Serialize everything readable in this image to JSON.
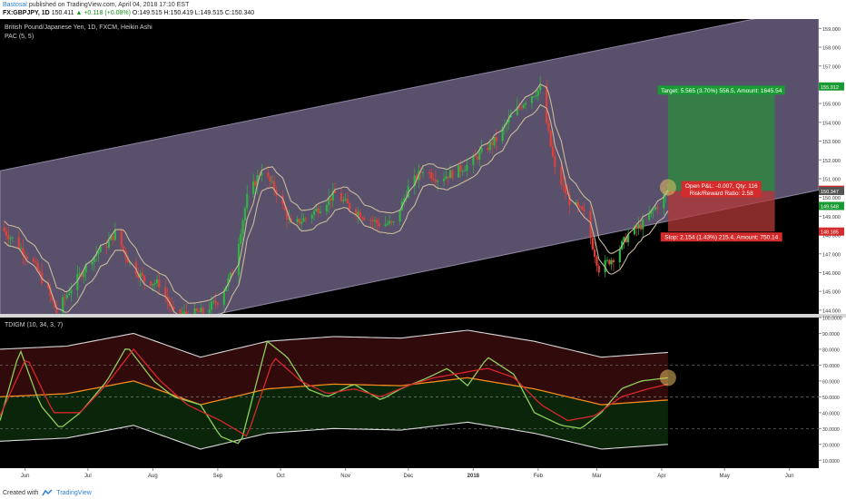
{
  "header": {
    "author": "Bastosal",
    "published_text": "published on TradingView.com, April 04, 2018 17:10 EST",
    "symbol": "FX:GBPJPY, 1D",
    "last": "150.411",
    "change": "▲ +0.118 (+0.08%)",
    "ohlc": "O:149.515 H:150.419 L:149.515 C:150.340"
  },
  "price_pane": {
    "title": "British Pound/Japanese Yen, 1D, FXCM, Heikin Ashi",
    "indicator": "PAC (5, 5)",
    "target_label": "Target: 5.565 (3.70%) 556.5, Amount: 1645.54",
    "open_pl_label": "Open P&L: -0.007, Qty: 116",
    "rr_label": "Risk/Reward Ratio: 2.58",
    "stop_label": "Stop: 2.154 (1.43%) 215.4, Amount: 750.14",
    "y_ticks": [
      "159.000",
      "158.000",
      "157.000",
      "156.000",
      "155.000",
      "154.000",
      "153.000",
      "152.000",
      "151.000",
      "150.000",
      "149.000",
      "148.000",
      "147.000",
      "146.000",
      "145.000",
      "144.000"
    ],
    "badges": [
      {
        "text": "155.912",
        "color": "#1a9a32"
      },
      {
        "text": "150.411",
        "color": "#d42c2c"
      },
      {
        "text": "150.347",
        "color": "#555555"
      },
      {
        "text": "149.548",
        "color": "#1a9a32"
      },
      {
        "text": "148.185",
        "color": "#d42c2c"
      }
    ]
  },
  "osc_pane": {
    "title": "TDIGM (10, 34, 3, 7)",
    "y_ticks": [
      "100.0000",
      "90.0000",
      "80.0000",
      "70.0000",
      "60.0000",
      "50.0000",
      "40.0000",
      "30.0000",
      "20.0000",
      "10.0000"
    ]
  },
  "x_axis": {
    "labels": [
      "Jun",
      "Jul",
      "Aug",
      "Sep",
      "Oct",
      "Nov",
      "Dec",
      "2018",
      "Feb",
      "Mar",
      "Apr",
      "May",
      "Jun"
    ]
  },
  "footer": {
    "created_with": "Created with",
    "brand": "TradingView"
  },
  "colors": {
    "channel_fill": "#635a78",
    "bull": "#2fb344",
    "bear": "#e0403b",
    "pac_line": "#c9b99a",
    "rsi": "#8fcf5a",
    "signal": "#d8262d",
    "mbl": "#f08a1e",
    "band": "#d8d8d8",
    "target_zone": "#2c8c3c",
    "stop_zone": "#b43838"
  },
  "chart_data": {
    "type": "candlestick",
    "title": "British Pound/Japanese Yen, 1D, FXCM, Heikin Ashi",
    "x_range": [
      "2017-05-20",
      "2018-06-15"
    ],
    "ylim": [
      143.8,
      159.5
    ],
    "price_path": [
      [
        "2017-05-19",
        148.5
      ],
      [
        "2017-05-26",
        147.8
      ],
      [
        "2017-06-05",
        146.5
      ],
      [
        "2017-06-12",
        145.0
      ],
      [
        "2017-06-16",
        143.9
      ],
      [
        "2017-06-23",
        145.2
      ],
      [
        "2017-07-03",
        146.8
      ],
      [
        "2017-07-10",
        147.5
      ],
      [
        "2017-07-14",
        148.1
      ],
      [
        "2017-07-21",
        146.5
      ],
      [
        "2017-07-28",
        145.6
      ],
      [
        "2017-08-04",
        145.4
      ],
      [
        "2017-08-11",
        143.8
      ],
      [
        "2017-08-18",
        143.8
      ],
      [
        "2017-08-25",
        143.9
      ],
      [
        "2017-09-01",
        144.5
      ],
      [
        "2017-09-08",
        146.0
      ],
      [
        "2017-09-15",
        150.0
      ],
      [
        "2017-09-22",
        151.5
      ],
      [
        "2017-09-29",
        150.3
      ],
      [
        "2017-10-06",
        148.5
      ],
      [
        "2017-10-13",
        148.9
      ],
      [
        "2017-10-20",
        149.5
      ],
      [
        "2017-10-27",
        150.2
      ],
      [
        "2017-11-03",
        149.5
      ],
      [
        "2017-11-10",
        149.0
      ],
      [
        "2017-11-17",
        148.6
      ],
      [
        "2017-11-24",
        148.6
      ],
      [
        "2017-12-01",
        150.5
      ],
      [
        "2017-12-08",
        151.5
      ],
      [
        "2017-12-15",
        151.0
      ],
      [
        "2017-12-22",
        151.3
      ],
      [
        "2017-12-29",
        151.7
      ],
      [
        "2018-01-05",
        152.4
      ],
      [
        "2018-01-12",
        153.1
      ],
      [
        "2018-01-19",
        154.3
      ],
      [
        "2018-01-26",
        155.2
      ],
      [
        "2018-02-02",
        155.8
      ],
      [
        "2018-02-09",
        151.5
      ],
      [
        "2018-02-16",
        149.8
      ],
      [
        "2018-02-23",
        149.1
      ],
      [
        "2018-03-02",
        146.2
      ],
      [
        "2018-03-09",
        146.8
      ],
      [
        "2018-03-16",
        148.0
      ],
      [
        "2018-03-23",
        148.6
      ],
      [
        "2018-03-30",
        149.6
      ],
      [
        "2018-04-04",
        150.34
      ]
    ],
    "last_close": 150.34,
    "position": {
      "entry": 150.347,
      "target": 155.912,
      "stop": 148.185,
      "target_pct": 3.7,
      "stop_pct": 1.43,
      "risk_reward": 2.58,
      "qty": 116
    },
    "channel": {
      "upper": [
        [
          "2017-05-19",
          151.4
        ],
        [
          "2018-06-15",
          160.2
        ]
      ],
      "lower": [
        [
          "2017-09-01",
          143.8
        ],
        [
          "2018-06-15",
          150.4
        ]
      ]
    },
    "oscillator": {
      "name": "TDIGM (10, 34, 3, 7)",
      "ylim": [
        5,
        100
      ],
      "levels": [
        70,
        50,
        30
      ],
      "rsi": [
        [
          0,
          35
        ],
        [
          0.03,
          80
        ],
        [
          0.06,
          45
        ],
        [
          0.09,
          30
        ],
        [
          0.12,
          40
        ],
        [
          0.16,
          60
        ],
        [
          0.19,
          82
        ],
        [
          0.23,
          60
        ],
        [
          0.26,
          50
        ],
        [
          0.3,
          45
        ],
        [
          0.33,
          25
        ],
        [
          0.36,
          20
        ],
        [
          0.4,
          85
        ],
        [
          0.43,
          75
        ],
        [
          0.46,
          55
        ],
        [
          0.49,
          50
        ],
        [
          0.53,
          58
        ],
        [
          0.57,
          48
        ],
        [
          0.6,
          55
        ],
        [
          0.64,
          62
        ],
        [
          0.67,
          68
        ],
        [
          0.7,
          57
        ],
        [
          0.73,
          75
        ],
        [
          0.77,
          64
        ],
        [
          0.8,
          40
        ],
        [
          0.84,
          32
        ],
        [
          0.87,
          30
        ],
        [
          0.9,
          40
        ],
        [
          0.93,
          55
        ],
        [
          0.96,
          60
        ],
        [
          1,
          62
        ]
      ],
      "signal": [
        [
          0,
          38
        ],
        [
          0.04,
          75
        ],
        [
          0.08,
          40
        ],
        [
          0.12,
          40
        ],
        [
          0.16,
          58
        ],
        [
          0.2,
          80
        ],
        [
          0.24,
          60
        ],
        [
          0.28,
          45
        ],
        [
          0.33,
          35
        ],
        [
          0.37,
          25
        ],
        [
          0.41,
          75
        ],
        [
          0.45,
          60
        ],
        [
          0.49,
          52
        ],
        [
          0.53,
          55
        ],
        [
          0.57,
          50
        ],
        [
          0.61,
          57
        ],
        [
          0.65,
          62
        ],
        [
          0.69,
          65
        ],
        [
          0.73,
          68
        ],
        [
          0.77,
          62
        ],
        [
          0.81,
          45
        ],
        [
          0.85,
          35
        ],
        [
          0.89,
          38
        ],
        [
          0.93,
          50
        ],
        [
          0.97,
          55
        ],
        [
          1,
          58
        ]
      ],
      "mbl": [
        [
          0,
          50
        ],
        [
          0.1,
          52
        ],
        [
          0.2,
          60
        ],
        [
          0.3,
          45
        ],
        [
          0.4,
          55
        ],
        [
          0.5,
          58
        ],
        [
          0.6,
          57
        ],
        [
          0.7,
          62
        ],
        [
          0.8,
          55
        ],
        [
          0.9,
          45
        ],
        [
          1,
          48
        ]
      ]
    }
  }
}
